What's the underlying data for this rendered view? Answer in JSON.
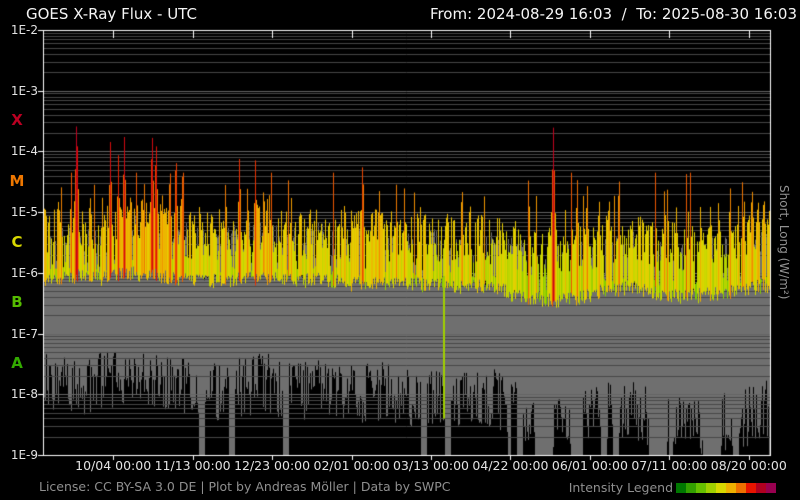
{
  "header": {
    "title": "GOES X-Ray Flux - UTC",
    "range": "From: 2024-08-29 16:03  /  To: 2025-08-30 16:03"
  },
  "right_axis_label": "Short, Long (W/m²)",
  "footer": {
    "license": "License: CC BY-SA 3.0 DE | Plot by Andreas Möller | Data by SWPC",
    "legend_label": "Intensity Legend",
    "legend_colors": [
      "#007700",
      "#33a000",
      "#66c000",
      "#a0d000",
      "#d8d800",
      "#eeb000",
      "#ee7000",
      "#e81400",
      "#b00020",
      "#980050"
    ]
  },
  "chart_data": {
    "type": "area",
    "title": "GOES X-Ray Flux - UTC",
    "x_start": "2024-08-29 16:03",
    "x_end": "2025-08-30 16:03",
    "x_days": 366,
    "y_scale": "log",
    "y_unit": "W/m²",
    "ylim_log": [
      -9,
      -2
    ],
    "y_ticks": [
      {
        "label": "1E-2",
        "log": -2
      },
      {
        "label": "1E-3",
        "log": -3
      },
      {
        "label": "1E-4",
        "log": -4
      },
      {
        "label": "1E-5",
        "log": -5
      },
      {
        "label": "1E-6",
        "log": -6
      },
      {
        "label": "1E-7",
        "log": -7
      },
      {
        "label": "1E-8",
        "log": -8
      },
      {
        "label": "1E-9",
        "log": -9
      }
    ],
    "class_bands": [
      {
        "label": "X",
        "log_center": -3.5,
        "color": "#bb0022"
      },
      {
        "label": "M",
        "log_center": -4.5,
        "color": "#ee7700"
      },
      {
        "label": "C",
        "log_center": -5.5,
        "color": "#d8d800"
      },
      {
        "label": "B",
        "log_center": -6.5,
        "color": "#55bb00"
      },
      {
        "label": "A",
        "log_center": -7.5,
        "color": "#33aa00"
      }
    ],
    "x_ticks": [
      {
        "label": "10/04 00:00",
        "day": 35.33
      },
      {
        "label": "11/13 00:00",
        "day": 75.33
      },
      {
        "label": "12/23 00:00",
        "day": 115.33
      },
      {
        "label": "02/01 00:00",
        "day": 155.33
      },
      {
        "label": "03/13 00:00",
        "day": 195.33
      },
      {
        "label": "04/22 00:00",
        "day": 235.33
      },
      {
        "label": "06/01 00:00",
        "day": 275.33
      },
      {
        "label": "07/11 00:00",
        "day": 315.33
      },
      {
        "label": "08/20 00:00",
        "day": 355.33
      }
    ],
    "grid": {
      "minor_color": "#474747",
      "major_color": "#656565",
      "frame_color": "#ffffff"
    },
    "series": [
      {
        "name": "long",
        "role": "colored-by-intensity",
        "sample_days": 14.08,
        "envelope_low_log": [
          -6.1,
          -6.05,
          -6.1,
          -6.0,
          -6.05,
          -6.1,
          -6.15,
          -6.1,
          -6.1,
          -6.15,
          -6.1,
          -6.2,
          -6.15,
          -6.2,
          -6.2,
          -6.25,
          -6.2,
          -6.4,
          -6.45,
          -6.45,
          -6.3,
          -6.25,
          -6.35,
          -6.4,
          -6.35,
          -6.3,
          -6.2
        ],
        "envelope_peak_log": [
          -5.3,
          -5.2,
          -5.35,
          -5.1,
          -5.2,
          -5.3,
          -5.4,
          -5.3,
          -5.2,
          -5.4,
          -5.3,
          -5.4,
          -5.35,
          -5.45,
          -5.4,
          -5.5,
          -5.45,
          -5.65,
          -5.7,
          -5.7,
          -5.45,
          -5.4,
          -5.55,
          -5.6,
          -5.5,
          -5.45,
          -5.3
        ]
      },
      {
        "name": "short",
        "role": "gray-channel",
        "color": "#6f6f6f",
        "sample_days": 14.08,
        "envelope_high_log": [
          -5.6,
          -5.55,
          -5.65,
          -5.45,
          -5.55,
          -5.6,
          -5.7,
          -5.6,
          -5.55,
          -5.7,
          -5.6,
          -5.7,
          -5.65,
          -5.75,
          -5.7,
          -5.8,
          -5.75,
          -5.9,
          -5.95,
          -5.95,
          -5.8,
          -5.75,
          -5.85,
          -5.9,
          -5.85,
          -5.8,
          -5.7
        ],
        "envelope_low_log": [
          -7.8,
          -7.9,
          -7.8,
          -7.7,
          -7.8,
          -7.9,
          -8.0,
          -7.9,
          -7.8,
          -8.0,
          -7.9,
          -8.0,
          -7.95,
          -8.05,
          -8.0,
          -8.1,
          -8.05,
          -8.3,
          -8.4,
          -8.45,
          -8.3,
          -8.2,
          -8.45,
          -8.55,
          -8.45,
          -8.4,
          -8.25
        ]
      }
    ],
    "flares": [
      {
        "day": 1,
        "log_peak": -4.6
      },
      {
        "day": 3,
        "log_peak": -4.85
      },
      {
        "day": 9,
        "log_peak": -4.9
      },
      {
        "day": 17,
        "log_peak": -3.4
      },
      {
        "day": 24,
        "log_peak": -4.65
      },
      {
        "day": 30,
        "log_peak": -4.7
      },
      {
        "day": 34,
        "log_peak": -3.82
      },
      {
        "day": 38,
        "log_peak": -4.05
      },
      {
        "day": 41,
        "log_peak": -3.72
      },
      {
        "day": 47,
        "log_peak": -4.6
      },
      {
        "day": 51,
        "log_peak": -4.4
      },
      {
        "day": 55,
        "log_peak": -3.6
      },
      {
        "day": 57,
        "log_peak": -3.72
      },
      {
        "day": 60,
        "log_peak": -4.5
      },
      {
        "day": 64,
        "log_peak": -4.1
      },
      {
        "day": 67,
        "log_peak": -3.9
      },
      {
        "day": 70,
        "log_peak": -4.4
      },
      {
        "day": 74,
        "log_peak": -4.7
      },
      {
        "day": 79,
        "log_peak": -4.62
      },
      {
        "day": 85,
        "log_peak": -4.8
      },
      {
        "day": 92,
        "log_peak": -4.38
      },
      {
        "day": 99,
        "log_peak": -4.02
      },
      {
        "day": 103,
        "log_peak": -4.55
      },
      {
        "day": 107,
        "log_peak": -4.12
      },
      {
        "day": 111,
        "log_peak": -4.7
      },
      {
        "day": 114,
        "log_peak": -4.68
      },
      {
        "day": 120,
        "log_peak": -4.9
      },
      {
        "day": 125,
        "log_peak": -4.62
      },
      {
        "day": 130,
        "log_peak": -4.85
      },
      {
        "day": 134,
        "log_peak": -4.8
      },
      {
        "day": 140,
        "log_peak": -4.9
      },
      {
        "day": 144,
        "log_peak": -4.85
      },
      {
        "day": 149,
        "log_peak": -4.9
      },
      {
        "day": 152,
        "log_peak": -4.6
      },
      {
        "day": 157,
        "log_peak": -4.8
      },
      {
        "day": 161,
        "log_peak": -4.05
      },
      {
        "day": 166,
        "log_peak": -4.85
      },
      {
        "day": 171,
        "log_peak": -4.9
      },
      {
        "day": 178,
        "log_peak": -4.5
      },
      {
        "day": 182,
        "log_peak": -4.6
      },
      {
        "day": 190,
        "log_peak": -4.85
      },
      {
        "day": 203,
        "log_peak": -4.9
      },
      {
        "day": 207,
        "log_peak": -4.9
      },
      {
        "day": 211,
        "log_peak": -4.4
      },
      {
        "day": 215,
        "log_peak": -4.6
      },
      {
        "day": 219,
        "log_peak": -4.75
      },
      {
        "day": 230,
        "log_peak": -4.85
      },
      {
        "day": 245,
        "log_peak": -4.8
      },
      {
        "day": 257,
        "log_peak": -3.6
      },
      {
        "day": 263,
        "log_peak": -4.9
      },
      {
        "day": 269,
        "log_peak": -4.35
      },
      {
        "day": 274,
        "log_peak": -4.4
      },
      {
        "day": 280,
        "log_peak": -4.6
      },
      {
        "day": 285,
        "log_peak": -4.55
      },
      {
        "day": 290,
        "log_peak": -4.35
      },
      {
        "day": 296,
        "log_peak": -4.9
      },
      {
        "day": 300,
        "log_peak": -4.8
      },
      {
        "day": 306,
        "log_peak": -5.0
      },
      {
        "day": 313,
        "log_peak": -4.5
      },
      {
        "day": 319,
        "log_peak": -4.9
      },
      {
        "day": 325,
        "log_peak": -4.95
      },
      {
        "day": 331,
        "log_peak": -4.9
      },
      {
        "day": 336,
        "log_peak": -4.85
      },
      {
        "day": 340,
        "log_peak": -4.75
      },
      {
        "day": 346,
        "log_peak": -4.45
      },
      {
        "day": 350,
        "log_peak": -4.7
      },
      {
        "day": 353,
        "log_peak": -4.6
      },
      {
        "day": 357,
        "log_peak": -4.4
      },
      {
        "day": 360,
        "log_peak": -4.55
      },
      {
        "day": 363,
        "log_peak": -4.5
      }
    ],
    "artifact_drops": [
      {
        "day": 202,
        "log_bottom": -8.4
      }
    ],
    "colormap": [
      {
        "log": -7.2,
        "color": "#007700"
      },
      {
        "log": -6.6,
        "color": "#44b000"
      },
      {
        "log": -6.2,
        "color": "#77cc00"
      },
      {
        "log": -5.9,
        "color": "#a0d000"
      },
      {
        "log": -5.55,
        "color": "#ccd800"
      },
      {
        "log": -5.2,
        "color": "#e6d000"
      },
      {
        "log": -4.85,
        "color": "#f0a800"
      },
      {
        "log": -4.45,
        "color": "#ee6a00"
      },
      {
        "log": -4.0,
        "color": "#e61400"
      },
      {
        "log": -3.55,
        "color": "#bb0022"
      },
      {
        "log": -3.1,
        "color": "#990050"
      }
    ]
  }
}
